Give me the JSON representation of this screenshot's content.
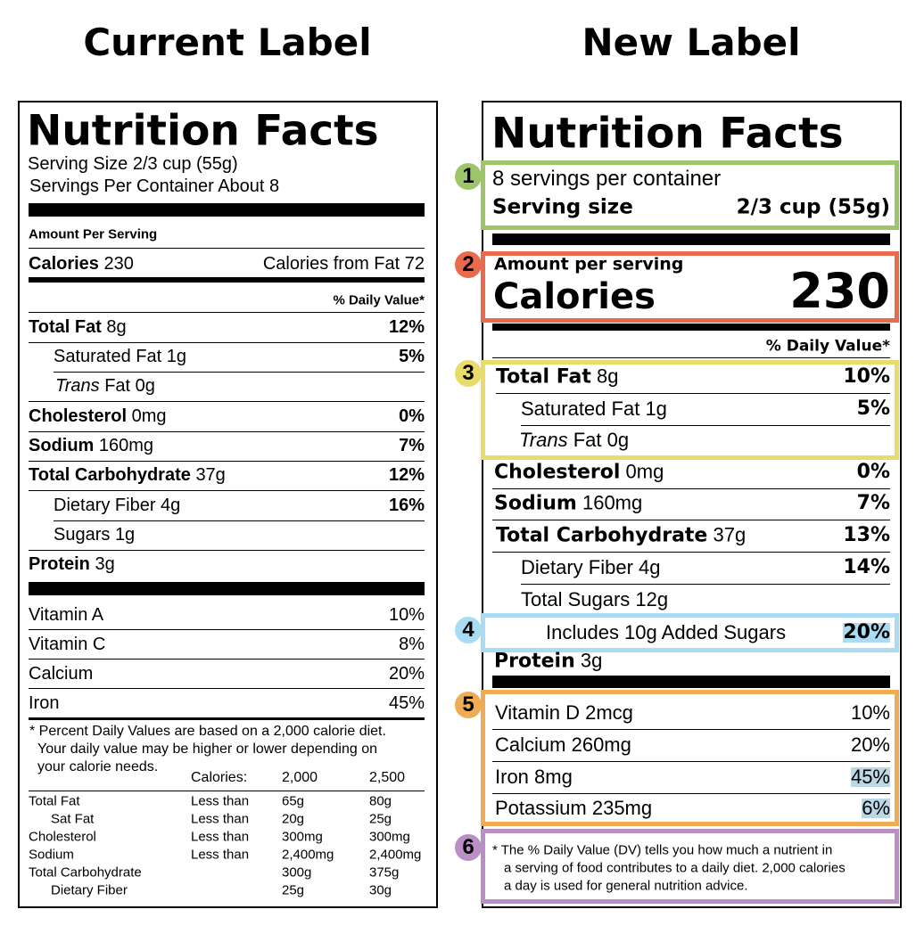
{
  "current_label": {
    "heading": "Current Label",
    "title": "Nutrition Facts",
    "serving_size": "Serving Size 2/3 cup (55g)",
    "servings_per_container": "Servings Per Container About 8",
    "amount_per_serving": "Amount Per Serving",
    "calories": {
      "label": "Calories",
      "value": "230",
      "from_fat": "Calories from Fat 72"
    },
    "daily_value_header": "% Daily Value*",
    "nutrients": [
      {
        "name": "Total Fat",
        "amount": "8g",
        "dv": "12%"
      },
      {
        "name": "Saturated Fat",
        "amount": "1g",
        "dv": "5%"
      },
      {
        "name_italic": "Trans",
        "name": "Fat",
        "amount": "0g"
      },
      {
        "name": "Cholesterol",
        "amount": "0mg",
        "dv": "0%"
      },
      {
        "name": "Sodium",
        "amount": "160mg",
        "dv": "7%"
      },
      {
        "name": "Total Carbohydrate",
        "amount": "37g",
        "dv": "12%"
      },
      {
        "name": "Dietary Fiber",
        "amount": "4g",
        "dv": "16%"
      },
      {
        "name": "Sugars",
        "amount": "1g"
      },
      {
        "name": "Protein",
        "amount": "3g"
      }
    ],
    "vitamins": [
      {
        "name": "Vitamin A",
        "dv": "10%"
      },
      {
        "name": "Vitamin C",
        "dv": "8%"
      },
      {
        "name": "Calcium",
        "dv": "20%"
      },
      {
        "name": "Iron",
        "dv": "45%"
      }
    ],
    "footnote": [
      "* Percent Daily Values are based on a 2,000 calorie diet.",
      "Your daily value may be higher or lower depending on",
      "your calorie needs."
    ],
    "table": {
      "header": {
        "label": "Calories:",
        "cal_2000": "2,000",
        "cal_2500": "2,500"
      },
      "rows": [
        {
          "nutrient": "Total Fat",
          "limit": "Less than",
          "cal_2000": "65g",
          "cal_2500": "80g"
        },
        {
          "nutrient": "Sat Fat",
          "limit": "Less than",
          "cal_2000": "20g",
          "cal_2500": "25g"
        },
        {
          "nutrient": "Cholesterol",
          "limit": "Less than",
          "cal_2000": "300mg",
          "cal_2500": "300mg"
        },
        {
          "nutrient": "Sodium",
          "limit": "Less than",
          "cal_2000": "2,400mg",
          "cal_2500": "2,400mg"
        },
        {
          "nutrient": "Total Carbohydrate",
          "cal_2000": "300g",
          "cal_2500": "375g"
        },
        {
          "nutrient": "Dietary Fiber",
          "cal_2000": "25g",
          "cal_2500": "30g"
        }
      ]
    }
  },
  "new_label": {
    "heading": "New Label",
    "title": "Nutrition Facts",
    "servings_per_container": "8 servings per container",
    "serving_size": {
      "label": "Serving size",
      "value": "2/3 cup (55g)"
    },
    "amount_per_serving": "Amount per serving",
    "calories": {
      "label": "Calories",
      "value": "230"
    },
    "daily_value_header": "% Daily Value*",
    "nutrients": [
      {
        "name": "Total Fat",
        "amount": "8g",
        "dv": "10%"
      },
      {
        "name": "Saturated Fat",
        "amount": "1g",
        "dv": "5%"
      },
      {
        "name_italic": "Trans",
        "name": "Fat",
        "amount": "0g"
      },
      {
        "name": "Cholesterol",
        "amount": "0mg",
        "dv": "0%"
      },
      {
        "name": "Sodium",
        "amount": "160mg",
        "dv": "7%"
      },
      {
        "name": "Total Carbohydrate",
        "amount": "37g",
        "dv": "13%"
      },
      {
        "name": "Dietary Fiber",
        "amount": "4g",
        "dv": "14%"
      },
      {
        "name": "Total Sugars",
        "amount": "12g"
      },
      {
        "name": "Includes 10g Added Sugars",
        "dv": "20%"
      },
      {
        "name": "Protein",
        "amount": "3g"
      }
    ],
    "vitamins": [
      {
        "name": "Vitamin D",
        "amount": "2mcg",
        "dv": "10%"
      },
      {
        "name": "Calcium",
        "amount": "260mg",
        "dv": "20%"
      },
      {
        "name": "Iron",
        "amount": "8mg",
        "dv": "45%"
      },
      {
        "name": "Potassium",
        "amount": "235mg",
        "dv": "6%"
      }
    ],
    "footnote": [
      "* The % Daily Value (DV) tells you how much a nutrient in",
      "a serving of food contributes to a daily diet. 2,000 calories",
      "a day is used for general nutrition advice."
    ],
    "callouts": [
      "1",
      "2",
      "3",
      "4",
      "5",
      "6"
    ]
  }
}
